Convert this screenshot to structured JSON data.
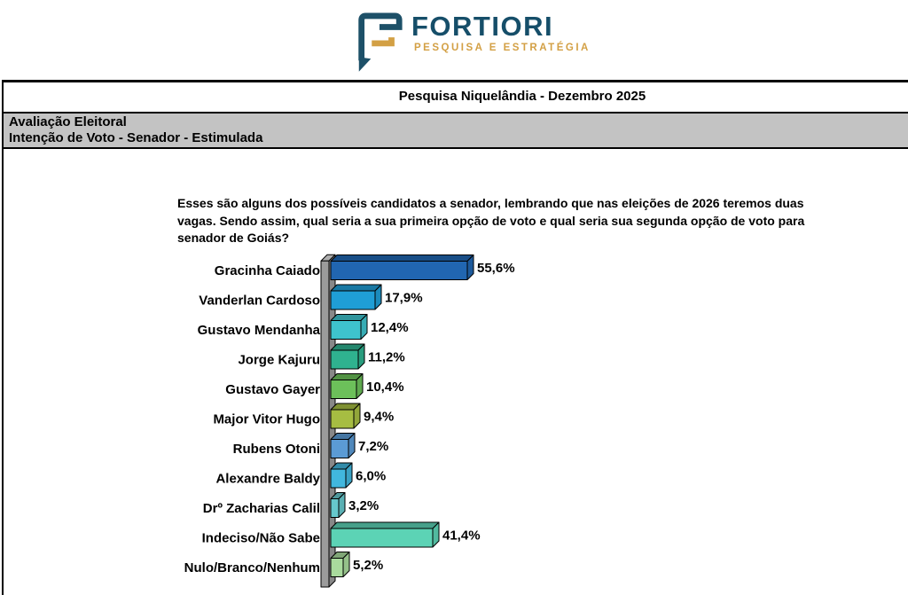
{
  "header": {
    "logo": {
      "brand": "FORTIORI",
      "tagline": "PESQUISA E ESTRATÉGIA"
    },
    "report_title": "Pesquisa Niquelândia - Dezembro 2025",
    "section_line1": "Avaliação Eleitoral",
    "section_line2": "Intenção de Voto - Senador - Estimulada"
  },
  "question": "Esses são alguns dos possíveis candidatos a senador, lembrando que nas eleições de 2026 teremos duas vagas. Sendo assim, qual seria a sua primeira opção de voto e qual seria sua segunda opção de voto para senador de Goiás?",
  "brand_colors": {
    "teal": "#1d5068",
    "gold": "#d3a045"
  },
  "chart_data": {
    "type": "bar",
    "orientation": "horizontal",
    "style": "3d",
    "title": "",
    "xlabel": "",
    "ylabel": "",
    "axis_hidden": true,
    "legend": false,
    "data_labels": true,
    "xlim": [
      0,
      60
    ],
    "categories": [
      "Gracinha Caiado",
      "Vanderlan Cardoso",
      "Gustavo Mendanha",
      "Jorge Kajuru",
      "Gustavo Gayer",
      "Major Vitor Hugo",
      "Rubens Otoni",
      "Alexandre Baldy",
      "Drº Zacharias Calil",
      "Indeciso/Não Sabe",
      "Nulo/Branco/Nenhum"
    ],
    "values": [
      55.6,
      17.9,
      12.4,
      11.2,
      10.4,
      9.4,
      7.2,
      6.0,
      3.2,
      41.4,
      5.2
    ],
    "value_labels": [
      "55,6%",
      "17,9%",
      "12,4%",
      "11,2%",
      "10,4%",
      "9,4%",
      "7,2%",
      "6,0%",
      "3,2%",
      "41,4%",
      "5,2%"
    ],
    "bar_colors": [
      "#2166b1",
      "#1f9ed6",
      "#3ec3cd",
      "#2fb28f",
      "#6cc05a",
      "#a6bd42",
      "#5b9bd5",
      "#41b7de",
      "#66c8cc",
      "#5cd3b5",
      "#a9db9d"
    ],
    "wall_color": "#9b9b9b"
  }
}
